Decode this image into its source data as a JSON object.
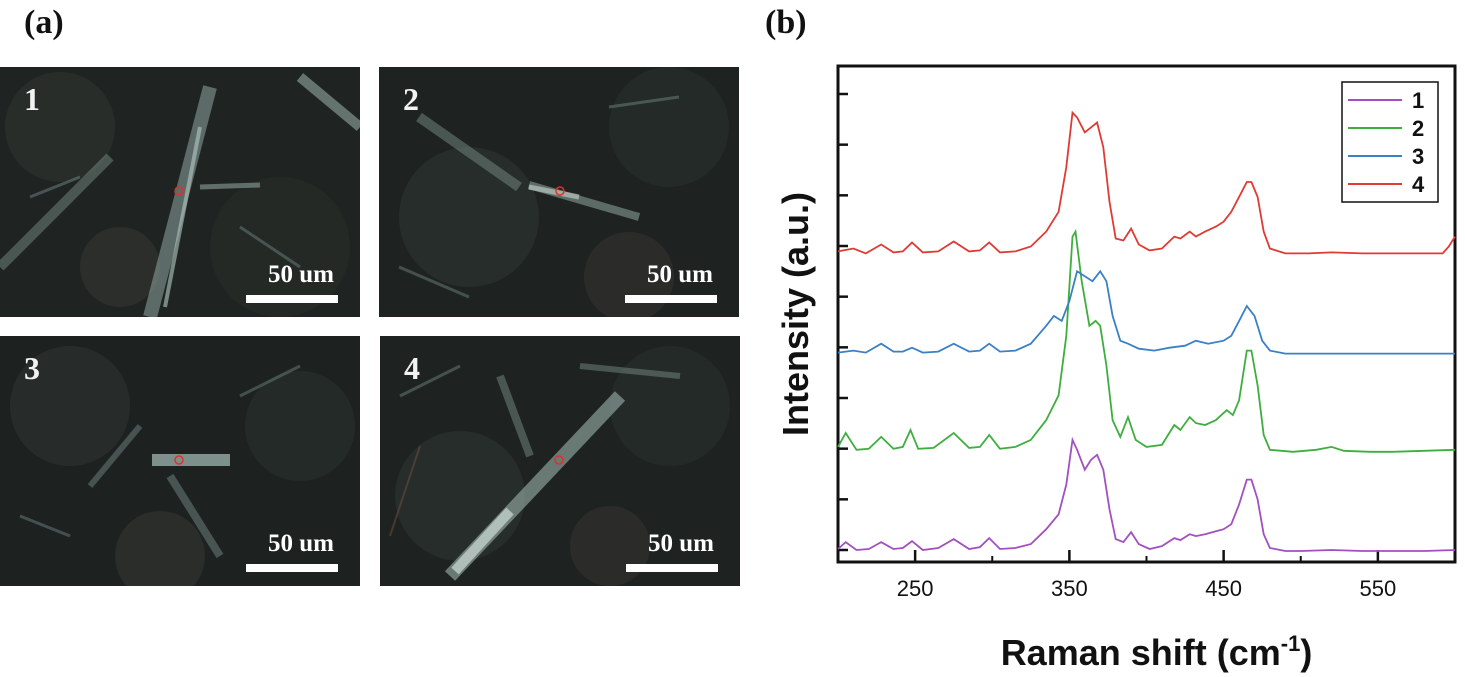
{
  "panel_a": {
    "label": "(a)",
    "images": [
      {
        "number": "1",
        "scale_text": "50 um"
      },
      {
        "number": "2",
        "scale_text": "50 um"
      },
      {
        "number": "3",
        "scale_text": "50 um"
      },
      {
        "number": "4",
        "scale_text": "50 um"
      }
    ]
  },
  "panel_b": {
    "label": "(b)"
  },
  "chart_data": {
    "type": "line",
    "title": "",
    "xlabel": "Raman  shift  (cm",
    "xlabel_sup": "-1",
    "xlabel_end": ")",
    "ylabel": "Intensity  (a.u.)",
    "xlim": [
      200,
      600
    ],
    "ylim": [
      0,
      5
    ],
    "x_ticks": [
      250,
      350,
      450,
      550
    ],
    "y_tick_labels": "none",
    "grid": false,
    "legend_position": "top-right",
    "series": [
      {
        "name": "1",
        "color": "#a24fc0",
        "offset": 0,
        "points": [
          [
            200,
            0.05
          ],
          [
            205,
            0.12
          ],
          [
            212,
            0.04
          ],
          [
            220,
            0.05
          ],
          [
            228,
            0.12
          ],
          [
            236,
            0.05
          ],
          [
            242,
            0.06
          ],
          [
            248,
            0.13
          ],
          [
            255,
            0.04
          ],
          [
            265,
            0.06
          ],
          [
            275,
            0.15
          ],
          [
            285,
            0.05
          ],
          [
            292,
            0.07
          ],
          [
            298,
            0.16
          ],
          [
            305,
            0.05
          ],
          [
            315,
            0.06
          ],
          [
            325,
            0.1
          ],
          [
            335,
            0.25
          ],
          [
            343,
            0.4
          ],
          [
            348,
            0.7
          ],
          [
            352,
            1.15
          ],
          [
            355,
            1.05
          ],
          [
            360,
            0.85
          ],
          [
            364,
            0.95
          ],
          [
            368,
            1.0
          ],
          [
            372,
            0.85
          ],
          [
            376,
            0.45
          ],
          [
            380,
            0.15
          ],
          [
            385,
            0.12
          ],
          [
            390,
            0.22
          ],
          [
            395,
            0.1
          ],
          [
            402,
            0.05
          ],
          [
            410,
            0.08
          ],
          [
            418,
            0.16
          ],
          [
            422,
            0.14
          ],
          [
            428,
            0.2
          ],
          [
            432,
            0.18
          ],
          [
            438,
            0.2
          ],
          [
            445,
            0.23
          ],
          [
            450,
            0.25
          ],
          [
            455,
            0.3
          ],
          [
            460,
            0.5
          ],
          [
            465,
            0.75
          ],
          [
            468,
            0.75
          ],
          [
            472,
            0.55
          ],
          [
            476,
            0.2
          ],
          [
            480,
            0.06
          ],
          [
            490,
            0.03
          ],
          [
            500,
            0.03
          ],
          [
            520,
            0.04
          ],
          [
            540,
            0.03
          ],
          [
            560,
            0.03
          ],
          [
            580,
            0.03
          ],
          [
            600,
            0.04
          ]
        ]
      },
      {
        "name": "2",
        "color": "#3fae3f",
        "offset": 1.0,
        "points": [
          [
            200,
            0.08
          ],
          [
            205,
            0.22
          ],
          [
            212,
            0.05
          ],
          [
            220,
            0.06
          ],
          [
            228,
            0.18
          ],
          [
            236,
            0.06
          ],
          [
            242,
            0.08
          ],
          [
            247,
            0.25
          ],
          [
            252,
            0.06
          ],
          [
            262,
            0.07
          ],
          [
            275,
            0.22
          ],
          [
            285,
            0.07
          ],
          [
            292,
            0.08
          ],
          [
            298,
            0.2
          ],
          [
            305,
            0.06
          ],
          [
            315,
            0.08
          ],
          [
            325,
            0.15
          ],
          [
            335,
            0.35
          ],
          [
            343,
            0.6
          ],
          [
            348,
            1.2
          ],
          [
            352,
            2.2
          ],
          [
            354,
            2.25
          ],
          [
            358,
            1.75
          ],
          [
            363,
            1.3
          ],
          [
            367,
            1.35
          ],
          [
            370,
            1.3
          ],
          [
            374,
            0.9
          ],
          [
            378,
            0.35
          ],
          [
            383,
            0.18
          ],
          [
            388,
            0.38
          ],
          [
            393,
            0.15
          ],
          [
            400,
            0.08
          ],
          [
            410,
            0.1
          ],
          [
            418,
            0.3
          ],
          [
            422,
            0.25
          ],
          [
            428,
            0.38
          ],
          [
            432,
            0.32
          ],
          [
            438,
            0.3
          ],
          [
            445,
            0.35
          ],
          [
            452,
            0.45
          ],
          [
            456,
            0.4
          ],
          [
            460,
            0.55
          ],
          [
            465,
            1.05
          ],
          [
            468,
            1.05
          ],
          [
            472,
            0.7
          ],
          [
            476,
            0.2
          ],
          [
            480,
            0.05
          ],
          [
            495,
            0.03
          ],
          [
            510,
            0.05
          ],
          [
            520,
            0.08
          ],
          [
            528,
            0.04
          ],
          [
            545,
            0.03
          ],
          [
            560,
            0.03
          ],
          [
            580,
            0.04
          ],
          [
            600,
            0.05
          ]
        ]
      },
      {
        "name": "3",
        "color": "#3a80c4",
        "offset": 2.0,
        "points": [
          [
            200,
            0.03
          ],
          [
            210,
            0.05
          ],
          [
            218,
            0.03
          ],
          [
            228,
            0.12
          ],
          [
            236,
            0.04
          ],
          [
            242,
            0.04
          ],
          [
            248,
            0.08
          ],
          [
            255,
            0.03
          ],
          [
            265,
            0.04
          ],
          [
            275,
            0.12
          ],
          [
            285,
            0.04
          ],
          [
            292,
            0.05
          ],
          [
            298,
            0.12
          ],
          [
            305,
            0.04
          ],
          [
            315,
            0.05
          ],
          [
            325,
            0.12
          ],
          [
            335,
            0.3
          ],
          [
            340,
            0.4
          ],
          [
            345,
            0.35
          ],
          [
            350,
            0.55
          ],
          [
            355,
            0.85
          ],
          [
            360,
            0.8
          ],
          [
            365,
            0.75
          ],
          [
            370,
            0.85
          ],
          [
            374,
            0.75
          ],
          [
            378,
            0.4
          ],
          [
            383,
            0.15
          ],
          [
            388,
            0.12
          ],
          [
            395,
            0.07
          ],
          [
            405,
            0.05
          ],
          [
            415,
            0.08
          ],
          [
            425,
            0.1
          ],
          [
            432,
            0.15
          ],
          [
            440,
            0.12
          ],
          [
            450,
            0.15
          ],
          [
            455,
            0.2
          ],
          [
            460,
            0.35
          ],
          [
            465,
            0.5
          ],
          [
            470,
            0.4
          ],
          [
            475,
            0.15
          ],
          [
            480,
            0.05
          ],
          [
            490,
            0.02
          ],
          [
            510,
            0.02
          ],
          [
            540,
            0.02
          ],
          [
            570,
            0.02
          ],
          [
            600,
            0.02
          ]
        ]
      },
      {
        "name": "4",
        "color": "#e03a34",
        "offset": 3.0,
        "points": [
          [
            200,
            0.05
          ],
          [
            210,
            0.08
          ],
          [
            218,
            0.03
          ],
          [
            228,
            0.12
          ],
          [
            236,
            0.04
          ],
          [
            242,
            0.05
          ],
          [
            248,
            0.14
          ],
          [
            255,
            0.04
          ],
          [
            265,
            0.05
          ],
          [
            275,
            0.15
          ],
          [
            285,
            0.05
          ],
          [
            292,
            0.06
          ],
          [
            298,
            0.14
          ],
          [
            305,
            0.04
          ],
          [
            315,
            0.05
          ],
          [
            325,
            0.1
          ],
          [
            335,
            0.25
          ],
          [
            343,
            0.45
          ],
          [
            348,
            0.9
          ],
          [
            352,
            1.45
          ],
          [
            355,
            1.4
          ],
          [
            360,
            1.25
          ],
          [
            364,
            1.3
          ],
          [
            368,
            1.35
          ],
          [
            372,
            1.1
          ],
          [
            376,
            0.55
          ],
          [
            380,
            0.18
          ],
          [
            385,
            0.16
          ],
          [
            390,
            0.28
          ],
          [
            395,
            0.12
          ],
          [
            402,
            0.06
          ],
          [
            410,
            0.08
          ],
          [
            418,
            0.2
          ],
          [
            422,
            0.18
          ],
          [
            428,
            0.25
          ],
          [
            432,
            0.2
          ],
          [
            438,
            0.25
          ],
          [
            445,
            0.3
          ],
          [
            450,
            0.35
          ],
          [
            455,
            0.45
          ],
          [
            460,
            0.6
          ],
          [
            465,
            0.75
          ],
          [
            468,
            0.75
          ],
          [
            472,
            0.6
          ],
          [
            476,
            0.25
          ],
          [
            480,
            0.08
          ],
          [
            490,
            0.03
          ],
          [
            505,
            0.03
          ],
          [
            520,
            0.04
          ],
          [
            540,
            0.03
          ],
          [
            560,
            0.03
          ],
          [
            580,
            0.03
          ],
          [
            592,
            0.03
          ],
          [
            596,
            0.1
          ],
          [
            600,
            0.2
          ]
        ]
      }
    ]
  }
}
